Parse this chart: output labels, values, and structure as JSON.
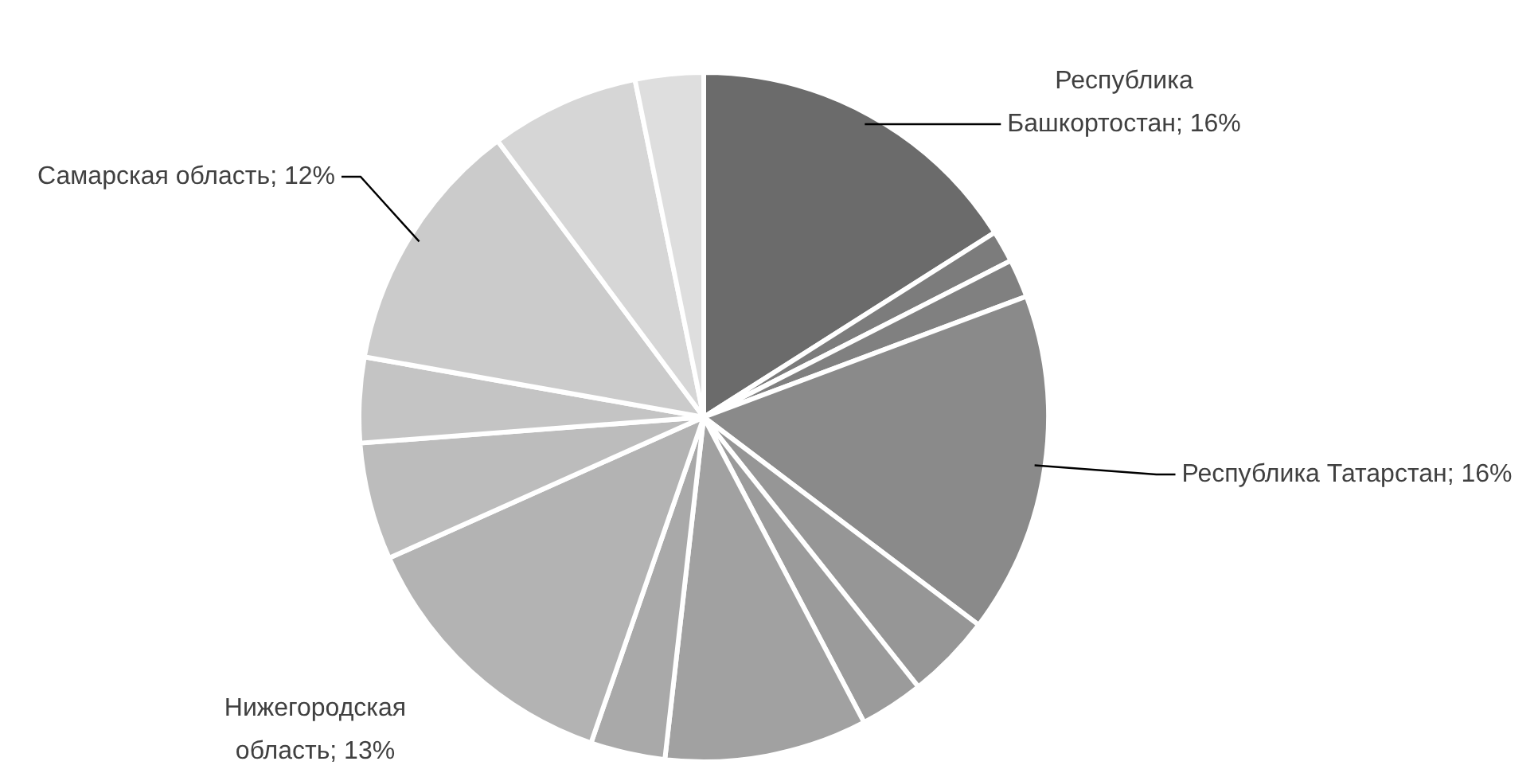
{
  "chart_data": {
    "type": "pie",
    "categories": [
      "Республика Башкортостан",
      null,
      null,
      "Республика Татарстан",
      null,
      null,
      null,
      null,
      "Нижегородская область",
      null,
      null,
      "Самарская область",
      null,
      null
    ],
    "values": [
      16,
      1.5,
      1.8,
      16,
      4,
      3,
      9.5,
      3.5,
      13,
      5.5,
      4,
      12,
      7,
      3.2
    ],
    "value_labels": [
      "16%",
      null,
      null,
      "16%",
      null,
      null,
      null,
      null,
      "13%",
      null,
      null,
      "12%",
      null,
      null
    ],
    "colors": [
      "#6b6b6b",
      "#7c7c7c",
      "#808080",
      "#8a8a8a",
      "#969696",
      "#9b9b9b",
      "#a1a1a1",
      "#a9a9a9",
      "#b3b3b3",
      "#bcbcbc",
      "#c4c4c4",
      "#cbcbcb",
      "#d6d6d6",
      "#dedede"
    ],
    "legend": false
  }
}
